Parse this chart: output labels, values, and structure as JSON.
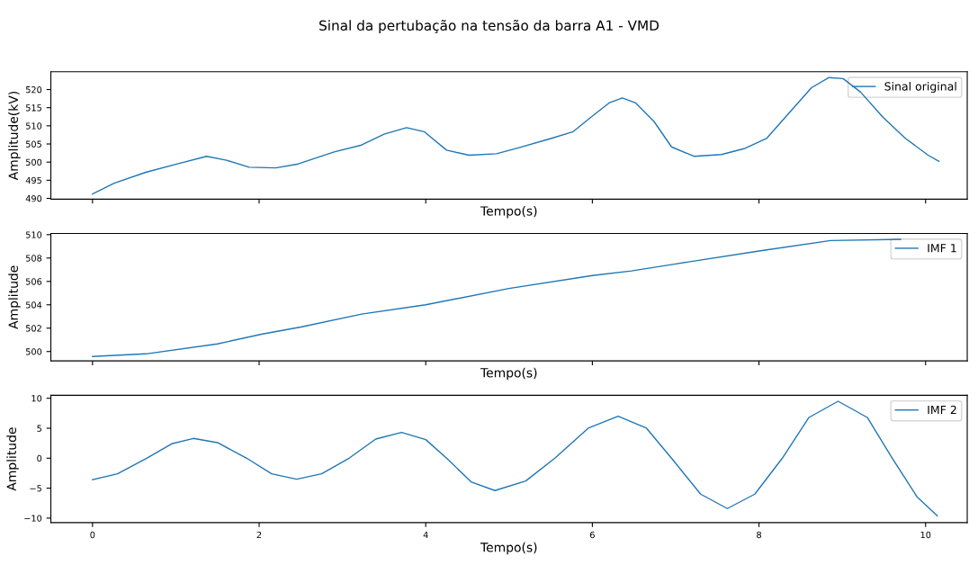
{
  "chart_data": [
    {
      "type": "line",
      "title": "Sinal da pertubação na tensão da barra A1 - VMD",
      "xlabel": "Tempo(s)",
      "ylabel": "Amplitude(kV)",
      "xlim": [
        -0.5,
        10.5
      ],
      "xticks": [
        0,
        2,
        4,
        6,
        8,
        10
      ],
      "ylim": [
        489.8,
        524.9
      ],
      "yticks": [
        490,
        495,
        500,
        505,
        510,
        515,
        520
      ],
      "tick_labels": "y",
      "legend": "top right",
      "grid": false,
      "x": [
        0,
        0.26,
        0.64,
        1.02,
        1.37,
        1.61,
        1.88,
        2.2,
        2.47,
        2.9,
        3.23,
        3.5,
        3.77,
        3.98,
        4.25,
        4.52,
        4.85,
        5.12,
        5.5,
        5.77,
        5.98,
        6.2,
        6.36,
        6.52,
        6.74,
        6.95,
        7.22,
        7.55,
        7.82,
        8.09,
        8.36,
        8.63,
        8.84,
        9.01,
        9.22,
        9.49,
        9.76,
        10.03,
        10.16
      ],
      "series": [
        {
          "name": "Sinal original",
          "color": "#1f77b4",
          "values": [
            491.2,
            494.2,
            497.2,
            499.5,
            501.6,
            500.5,
            498.6,
            498.4,
            499.5,
            502.8,
            504.7,
            507.7,
            509.5,
            508.4,
            503.3,
            501.9,
            502.3,
            504.0,
            506.5,
            508.4,
            512.3,
            516.3,
            517.7,
            516.3,
            511.2,
            504.2,
            501.6,
            502.1,
            503.7,
            506.5,
            513.5,
            520.5,
            523.3,
            523.0,
            519.3,
            512.3,
            506.5,
            501.9,
            500.2
          ]
        }
      ]
    },
    {
      "type": "line",
      "xlabel": "Tempo(s)",
      "ylabel": "Amplitude",
      "xlim": [
        -0.5,
        10.5
      ],
      "xticks": [
        0,
        2,
        4,
        6,
        8,
        10
      ],
      "ylim": [
        499.2,
        510.1
      ],
      "yticks": [
        500,
        502,
        504,
        506,
        508,
        510
      ],
      "tick_labels": "y",
      "legend": "top right",
      "grid": false,
      "x": [
        0,
        0.64,
        1.5,
        2.04,
        2.5,
        3.23,
        4.0,
        5.0,
        6.0,
        6.47,
        7.0,
        8.0,
        8.86,
        9.7
      ],
      "series": [
        {
          "name": "IMF 1",
          "color": "#1f77b4",
          "values": [
            499.57,
            499.8,
            500.65,
            501.5,
            502.1,
            503.2,
            504.0,
            505.4,
            506.5,
            506.9,
            507.5,
            508.6,
            509.5,
            509.6
          ]
        }
      ]
    },
    {
      "type": "line",
      "xlabel": "Tempo(s)",
      "ylabel": "Amplitude",
      "xlim": [
        -0.5,
        10.5
      ],
      "xticks": [
        0,
        2,
        4,
        6,
        8,
        10
      ],
      "ylim": [
        -10.75,
        10.5
      ],
      "yticks": [
        {
          "value": -10,
          "label": "−10"
        },
        {
          "value": -5,
          "label": "−5"
        },
        0,
        5,
        10
      ],
      "legend": "top right",
      "grid": false,
      "x": [
        0,
        0.3,
        0.65,
        0.95,
        1.21,
        1.5,
        1.85,
        2.15,
        2.45,
        2.75,
        3.08,
        3.4,
        3.71,
        4.0,
        4.25,
        4.55,
        4.83,
        5.2,
        5.55,
        5.95,
        6.31,
        6.65,
        6.95,
        7.3,
        7.62,
        7.95,
        8.28,
        8.6,
        8.95,
        9.3,
        9.6,
        9.9,
        10.14
      ],
      "series": [
        {
          "name": "IMF 2",
          "color": "#1f77b4",
          "values": [
            -3.6,
            -2.6,
            0,
            2.4,
            3.3,
            2.6,
            0,
            -2.6,
            -3.5,
            -2.6,
            0,
            3.2,
            4.3,
            3.1,
            0,
            -4.0,
            -5.4,
            -3.8,
            0,
            5.0,
            7.0,
            5.0,
            0,
            -6.0,
            -8.4,
            -6.0,
            0,
            6.8,
            9.5,
            6.8,
            0,
            -6.5,
            -9.6
          ]
        }
      ]
    }
  ]
}
